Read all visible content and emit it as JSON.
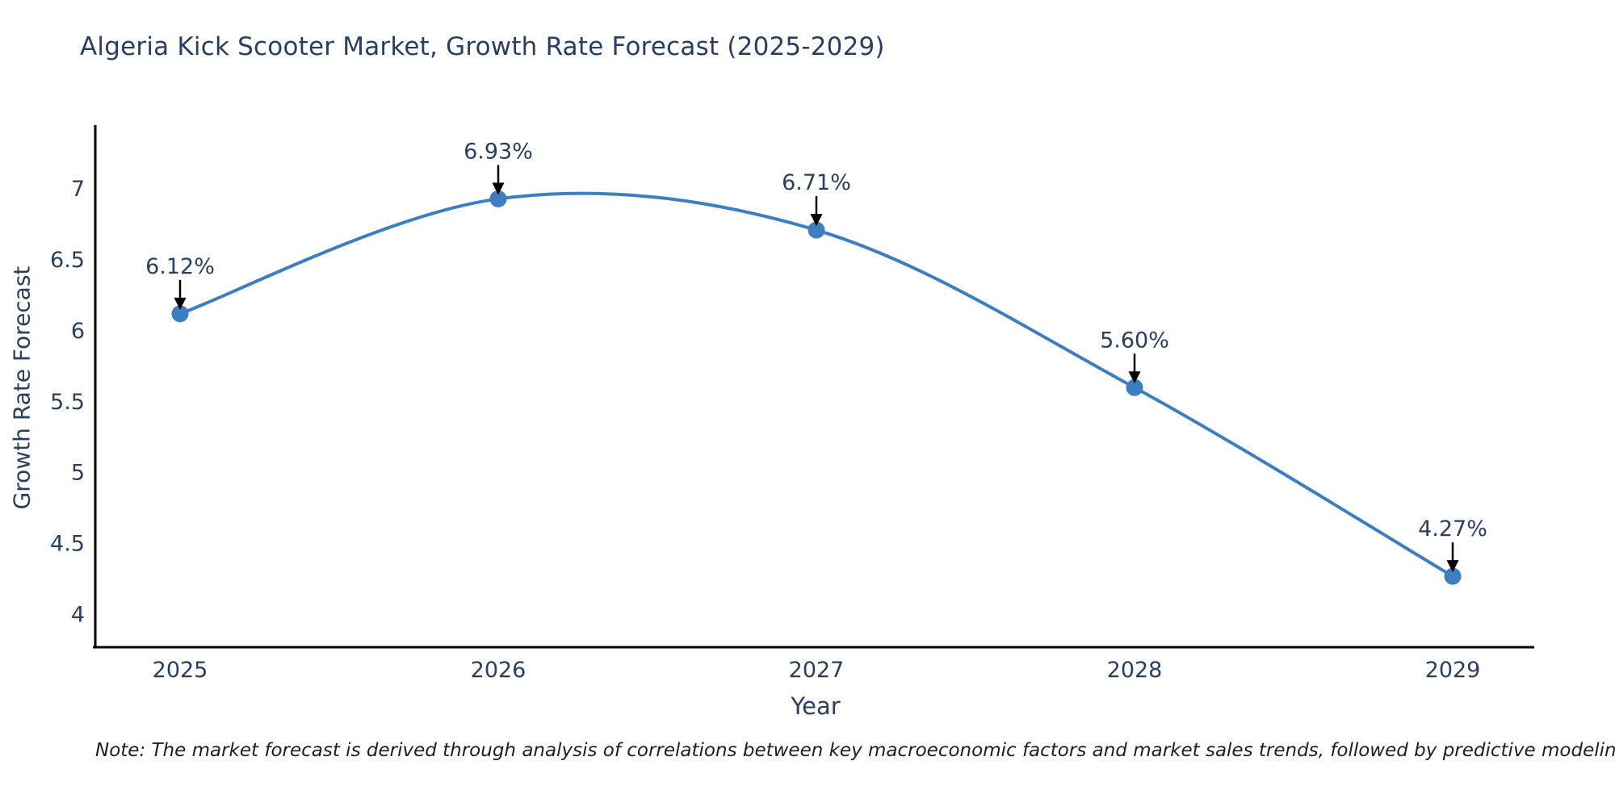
{
  "title": "Algeria Kick Scooter Market, Growth Rate Forecast (2025-2029)",
  "note": "Note: The market forecast is derived through analysis of correlations between key macroeconomic factors and market sales trends, followed by predictive modeling to project future sales",
  "chart_data": {
    "type": "line",
    "title": "Algeria Kick Scooter Market, Growth Rate Forecast (2025-2029)",
    "xlabel": "Year",
    "ylabel": "Growth Rate Forecast",
    "x": [
      2025,
      2026,
      2027,
      2028,
      2029
    ],
    "values": [
      6.12,
      6.93,
      6.71,
      5.6,
      4.27
    ],
    "point_labels": [
      "6.12%",
      "6.93%",
      "6.71%",
      "5.60%",
      "4.27%"
    ],
    "yticks": [
      7,
      6.5,
      6,
      5.5,
      5,
      4.5,
      4
    ],
    "ylim": [
      3.77,
      7.45
    ],
    "line_shape": "spline",
    "grid": false,
    "legend_position": "none",
    "colors": {
      "line": "#3c7ebf",
      "marker": "#3c7ebf",
      "axis": "#000000",
      "tick_text": "#2a3f5f",
      "annotation_text": "#2a3f5f",
      "annotation_arrow": "#000000"
    }
  }
}
